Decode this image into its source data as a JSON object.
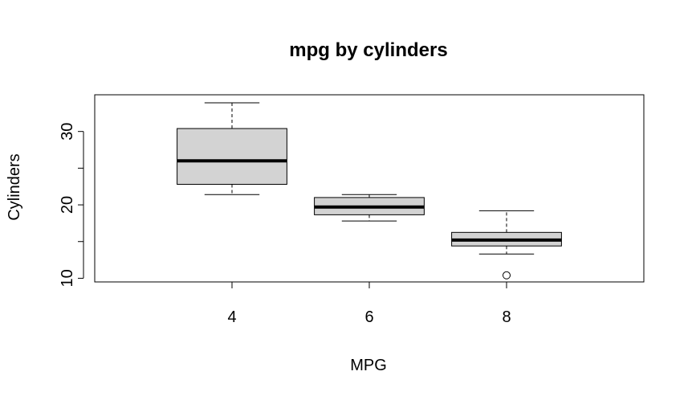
{
  "chart_data": {
    "type": "boxplot",
    "title": "mpg by cylinders",
    "xlabel": "MPG",
    "ylabel": "Cylinders",
    "ylim": [
      9.5,
      35
    ],
    "y_ticks": [
      10,
      20,
      30
    ],
    "y_minor_ticks": [
      15,
      25
    ],
    "grid": false,
    "box_fill": "#d3d3d3",
    "categories": [
      "4",
      "6",
      "8"
    ],
    "boxes": [
      {
        "category": "4",
        "whisker_low": 21.4,
        "q1": 22.8,
        "median": 26.0,
        "q3": 30.4,
        "whisker_high": 33.9,
        "outliers": []
      },
      {
        "category": "6",
        "whisker_low": 17.8,
        "q1": 18.65,
        "median": 19.7,
        "q3": 21.0,
        "whisker_high": 21.4,
        "outliers": []
      },
      {
        "category": "8",
        "whisker_low": 13.3,
        "q1": 14.4,
        "median": 15.2,
        "q3": 16.25,
        "whisker_high": 19.2,
        "outliers": [
          10.4
        ]
      }
    ]
  }
}
